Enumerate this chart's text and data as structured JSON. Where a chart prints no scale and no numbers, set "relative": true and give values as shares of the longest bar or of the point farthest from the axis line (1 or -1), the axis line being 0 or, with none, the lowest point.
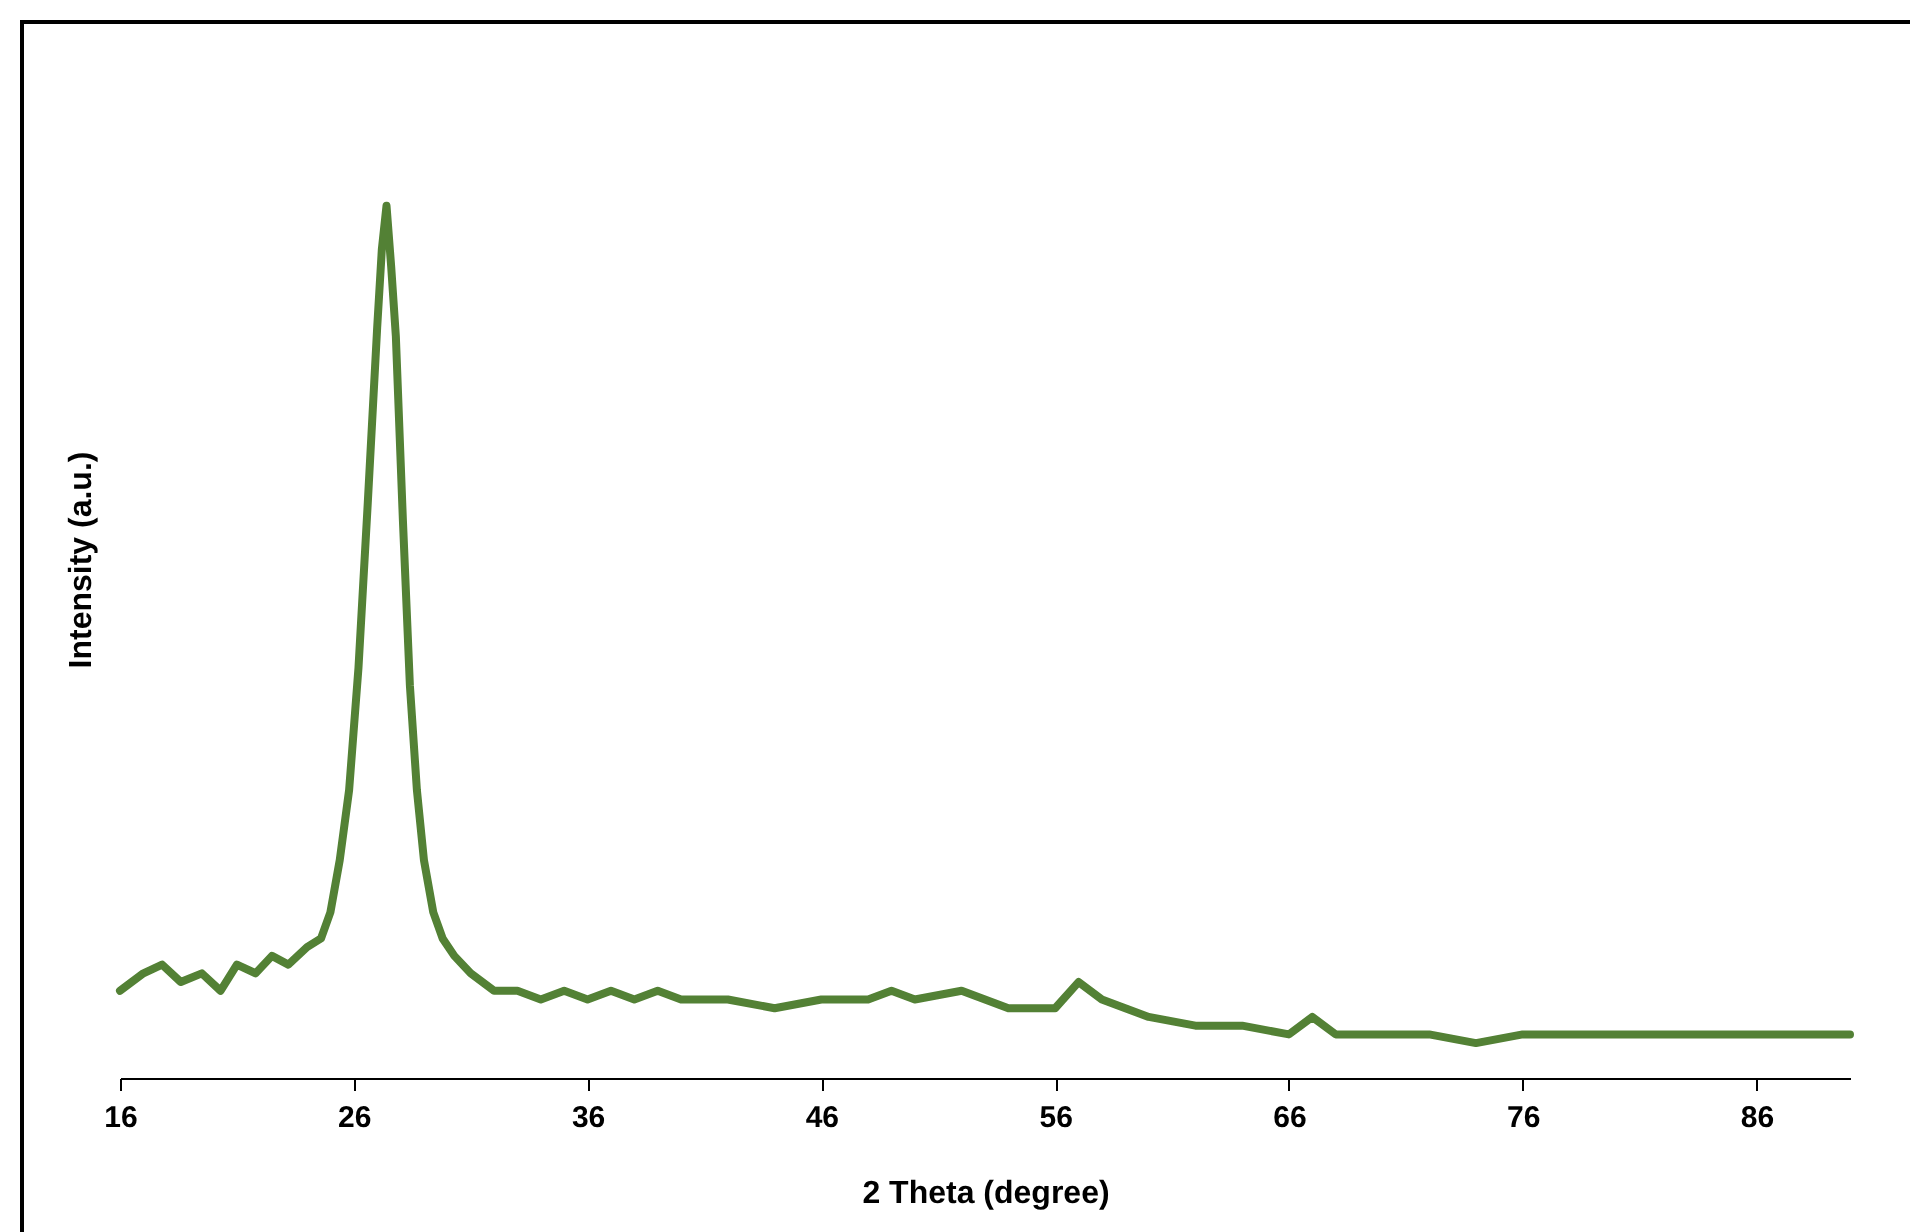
{
  "chart_data": {
    "type": "line",
    "relative": true,
    "xlabel": "2 Theta (degree)",
    "ylabel": "Intensity (a.u.)",
    "xlim": [
      16,
      90
    ],
    "xticks": [
      16,
      26,
      36,
      46,
      56,
      66,
      76,
      86
    ],
    "grid": false,
    "legend": false,
    "marker": "none",
    "line_style": "solid",
    "series": [
      {
        "color": "#538135",
        "x": [
          16,
          17,
          17.8,
          18.6,
          19.5,
          20.3,
          21,
          21.8,
          22.5,
          23.2,
          24,
          24.6,
          25,
          25.4,
          25.8,
          26.2,
          26.6,
          27,
          27.2,
          27.4,
          27.6,
          27.8,
          28.1,
          28.4,
          28.7,
          29,
          29.4,
          29.8,
          30.3,
          31,
          32,
          33,
          34,
          35,
          36,
          37,
          38,
          39,
          40,
          42,
          44,
          46,
          48,
          49,
          50,
          52,
          54,
          56,
          57,
          58,
          59,
          60,
          62,
          64,
          66,
          67,
          68,
          70,
          72,
          74,
          76,
          78,
          80,
          82,
          84,
          86,
          88,
          90
        ],
        "values": [
          0.1,
          0.12,
          0.13,
          0.11,
          0.12,
          0.1,
          0.13,
          0.12,
          0.14,
          0.13,
          0.15,
          0.16,
          0.19,
          0.25,
          0.33,
          0.47,
          0.66,
          0.86,
          0.95,
          1,
          0.93,
          0.85,
          0.64,
          0.45,
          0.33,
          0.25,
          0.19,
          0.16,
          0.14,
          0.12,
          0.1,
          0.1,
          0.09,
          0.1,
          0.09,
          0.1,
          0.09,
          0.1,
          0.09,
          0.09,
          0.08,
          0.09,
          0.09,
          0.1,
          0.09,
          0.1,
          0.08,
          0.08,
          0.11,
          0.09,
          0.08,
          0.07,
          0.06,
          0.06,
          0.05,
          0.07,
          0.05,
          0.05,
          0.05,
          0.04,
          0.05,
          0.05,
          0.05,
          0.05,
          0.05,
          0.05,
          0.05,
          0.05
        ]
      }
    ]
  }
}
